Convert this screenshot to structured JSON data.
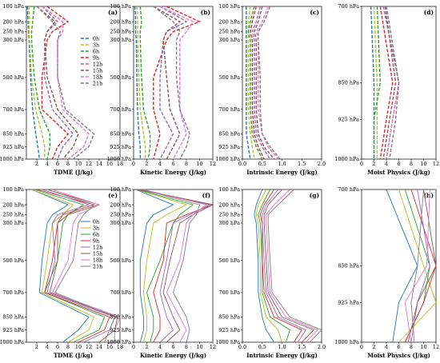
{
  "colors": {
    "0h": "#1f77b4",
    "3h": "#bcbd22",
    "6h": "#2ca02c",
    "9h": "#d62728",
    "12h": "#9467bd",
    "15h": "#8c564b",
    "18h": "#e377c2",
    "21h": "#7f7f7f"
  },
  "chart_data": [
    {
      "panel": "(a)",
      "type": "line",
      "style": "dashed",
      "xlabel": "TDME (J/kg)",
      "xlim": [
        0,
        18
      ],
      "xticks": [
        2,
        4,
        6,
        8,
        10,
        12,
        14,
        16,
        18
      ],
      "levels_y": [
        "100 hPa",
        "200 hPa",
        "250 hPa",
        "300 hPa",
        "500 hPa",
        "700 hPa",
        "850 hPa",
        "925 hPa",
        "1000 hPa"
      ],
      "legend": [
        "0h",
        "3h",
        "6h",
        "9h",
        "12h",
        "15h",
        "18h",
        "21h"
      ],
      "series": [
        {
          "name": "0h",
          "values": [
            0.2,
            0.3,
            0.4,
            0.5,
            0.8,
            1.2,
            1.8,
            2.2,
            2.5
          ]
        },
        {
          "name": "3h",
          "values": [
            0.5,
            0.6,
            0.5,
            0.6,
            1.0,
            1.8,
            3.0,
            3.5,
            3.5
          ]
        },
        {
          "name": "6h",
          "values": [
            1.5,
            1.2,
            1.0,
            1.0,
            1.5,
            2.5,
            4.5,
            4.5,
            4.0
          ]
        },
        {
          "name": "9h",
          "values": [
            4,
            8,
            5,
            4,
            3,
            3,
            8,
            6,
            5
          ]
        },
        {
          "name": "12h",
          "values": [
            3,
            6,
            4,
            3.5,
            3.5,
            5,
            9,
            7,
            6
          ]
        },
        {
          "name": "15h",
          "values": [
            2,
            5.5,
            4,
            3.5,
            4,
            6,
            10,
            9,
            7
          ]
        },
        {
          "name": "18h",
          "values": [
            3,
            7,
            7,
            6,
            6,
            7,
            12,
            11,
            8
          ]
        },
        {
          "name": "21h",
          "values": [
            2,
            5,
            6.5,
            6,
            6,
            7.5,
            13,
            12,
            9
          ]
        }
      ]
    },
    {
      "panel": "(b)",
      "type": "line",
      "style": "dashed",
      "xlabel": "Kinetic Energy (J/kg)",
      "xlim": [
        0,
        12
      ],
      "xticks": [
        0,
        2,
        4,
        6,
        8,
        10,
        12
      ],
      "levels_y": [
        "100 hPa",
        "200 hPa",
        "250 hPa",
        "300 hPa",
        "500 hPa",
        "700 hPa",
        "850 hPa",
        "925 hPa",
        "1000 hPa"
      ],
      "series": [
        {
          "name": "0h",
          "values": [
            0.2,
            0.3,
            0.3,
            0.4,
            0.5,
            0.6,
            0.8,
            1.0,
            1.0
          ]
        },
        {
          "name": "3h",
          "values": [
            0.5,
            0.6,
            0.6,
            0.6,
            0.8,
            1.0,
            1.5,
            1.8,
            1.8
          ]
        },
        {
          "name": "6h",
          "values": [
            1.0,
            1.2,
            1.0,
            1.0,
            1.2,
            1.5,
            2.5,
            2.5,
            2.2
          ]
        },
        {
          "name": "9h",
          "values": [
            5,
            10,
            6,
            5,
            3,
            3,
            4,
            3.5,
            3
          ]
        },
        {
          "name": "12h",
          "values": [
            4,
            8,
            5,
            4.5,
            4,
            4,
            6,
            5,
            4
          ]
        },
        {
          "name": "15h",
          "values": [
            3,
            7,
            5,
            4.5,
            5,
            5.5,
            7,
            6,
            5
          ]
        },
        {
          "name": "18h",
          "values": [
            4,
            9,
            8,
            7,
            7,
            7,
            8,
            7,
            6
          ]
        },
        {
          "name": "21h",
          "values": [
            3,
            6,
            7,
            6.5,
            6.5,
            7,
            8.5,
            8,
            7
          ]
        }
      ]
    },
    {
      "panel": "(c)",
      "type": "line",
      "style": "dashed",
      "xlabel": "Intrinsic Energy (J/kg)",
      "xlim": [
        0,
        2.0
      ],
      "xticks": [
        0.0,
        0.5,
        1.0,
        1.5,
        2.0
      ],
      "levels_y": [
        "100 hPa",
        "200 hPa",
        "250 hPa",
        "300 hPa",
        "500 hPa",
        "700 hPa",
        "850 hPa",
        "925 hPa",
        "1000 hPa"
      ],
      "series": [
        {
          "name": "0h",
          "values": [
            0.1,
            0.1,
            0.1,
            0.1,
            0.1,
            0.1,
            0.1,
            0.15,
            0.2
          ]
        },
        {
          "name": "3h",
          "values": [
            0.2,
            0.15,
            0.15,
            0.15,
            0.15,
            0.15,
            0.2,
            0.25,
            0.3
          ]
        },
        {
          "name": "6h",
          "values": [
            0.3,
            0.2,
            0.15,
            0.2,
            0.2,
            0.2,
            0.25,
            0.35,
            0.5
          ]
        },
        {
          "name": "9h",
          "values": [
            0.35,
            0.25,
            0.2,
            0.25,
            0.25,
            0.25,
            0.3,
            0.4,
            0.55
          ]
        },
        {
          "name": "12h",
          "values": [
            0.45,
            0.35,
            0.25,
            0.3,
            0.3,
            0.3,
            0.35,
            0.5,
            0.7
          ]
        },
        {
          "name": "15h",
          "values": [
            0.5,
            0.4,
            0.3,
            0.35,
            0.35,
            0.35,
            0.4,
            0.55,
            0.8
          ]
        },
        {
          "name": "18h",
          "values": [
            0.65,
            0.5,
            0.35,
            0.4,
            0.4,
            0.4,
            0.5,
            0.65,
            0.9
          ]
        },
        {
          "name": "21h",
          "values": [
            0.7,
            0.55,
            0.4,
            0.4,
            0.45,
            0.45,
            0.5,
            0.7,
            0.95
          ]
        }
      ]
    },
    {
      "panel": "(d)",
      "type": "line",
      "style": "dashed",
      "xlabel": "Moist Physics (J/kg)",
      "xlim": [
        0,
        12
      ],
      "xticks": [
        0,
        2,
        4,
        6,
        8,
        10,
        12
      ],
      "levels_y": [
        "700 hPa",
        "850 hPa",
        "925 hPa",
        "1000 hPa"
      ],
      "series": [
        {
          "name": "0h",
          "values": [
            1.5,
            2,
            2,
            2
          ]
        },
        {
          "name": "3h",
          "values": [
            2,
            2.5,
            2.5,
            2.5
          ]
        },
        {
          "name": "6h",
          "values": [
            2.5,
            3,
            2,
            2
          ]
        },
        {
          "name": "9h",
          "values": [
            3,
            5,
            4,
            3
          ]
        },
        {
          "name": "12h",
          "values": [
            3.5,
            6,
            5,
            4
          ]
        },
        {
          "name": "15h",
          "values": [
            3.8,
            5.5,
            4.5,
            3.5
          ]
        },
        {
          "name": "18h",
          "values": [
            4,
            6,
            5,
            4
          ]
        },
        {
          "name": "21h",
          "values": [
            4,
            6,
            5.5,
            4.5
          ]
        }
      ]
    },
    {
      "panel": "(e)",
      "type": "line",
      "style": "solid",
      "xlabel": "TDME (J/kg)",
      "xlim": [
        0,
        18
      ],
      "xticks": [
        2,
        4,
        6,
        8,
        10,
        12,
        14,
        16,
        18
      ],
      "levels_y": [
        "100 hPa",
        "200 hPa",
        "250 hPa",
        "300 hPa",
        "500 hPa",
        "700 hPa",
        "850 hPa",
        "925 hPa",
        "1000 hPa"
      ],
      "legend": [
        "0h",
        "3h",
        "6h",
        "9h",
        "12h",
        "15h",
        "18h",
        "21h"
      ],
      "series": [
        {
          "name": "0h",
          "values": [
            1,
            8,
            5,
            4,
            3,
            2.5,
            12,
            10,
            7
          ]
        },
        {
          "name": "3h",
          "values": [
            1,
            9,
            7,
            5,
            4,
            3,
            13,
            12,
            8
          ]
        },
        {
          "name": "6h",
          "values": [
            1.5,
            11,
            8,
            7,
            6,
            3.5,
            15,
            14,
            9
          ]
        },
        {
          "name": "9h",
          "values": [
            2,
            13,
            7,
            6,
            5,
            3.5,
            16,
            15,
            10
          ]
        },
        {
          "name": "12h",
          "values": [
            3,
            12,
            6,
            5,
            5.5,
            4,
            17,
            16,
            11
          ]
        },
        {
          "name": "15h",
          "values": [
            4,
            14,
            8,
            6,
            6,
            4.5,
            17.5,
            17,
            14
          ]
        },
        {
          "name": "18h",
          "values": [
            5,
            14,
            10,
            9,
            8,
            5,
            18,
            17,
            17
          ]
        },
        {
          "name": "21h",
          "values": [
            4,
            13,
            11,
            10,
            9,
            5.5,
            17,
            16,
            15
          ]
        }
      ]
    },
    {
      "panel": "(f)",
      "type": "line",
      "style": "solid",
      "xlabel": "Kinetic Energy (J/kg)",
      "xlim": [
        0,
        12
      ],
      "xticks": [
        0,
        2,
        4,
        6,
        8,
        10,
        12
      ],
      "levels_y": [
        "100 hPa",
        "200 hPa",
        "250 hPa",
        "300 hPa",
        "500 hPa",
        "700 hPa",
        "850 hPa",
        "925 hPa",
        "1000 hPa"
      ],
      "series": [
        {
          "name": "0h",
          "values": [
            0.3,
            6,
            3,
            2,
            1,
            1,
            1.5,
            1.5,
            1
          ]
        },
        {
          "name": "3h",
          "values": [
            0.4,
            8,
            5,
            3,
            2,
            1.5,
            2,
            2,
            1.5
          ]
        },
        {
          "name": "6h",
          "values": [
            0.5,
            9,
            7,
            6,
            4,
            2,
            3,
            3,
            2.5
          ]
        },
        {
          "name": "9h",
          "values": [
            0.6,
            12,
            8,
            5,
            4.5,
            3,
            4,
            4,
            3
          ]
        },
        {
          "name": "12h",
          "values": [
            0.8,
            11.5,
            8.5,
            6,
            5,
            4,
            5,
            6,
            4
          ]
        },
        {
          "name": "15h",
          "values": [
            1,
            12,
            9,
            7,
            5.5,
            4.5,
            6,
            7,
            5
          ]
        },
        {
          "name": "18h",
          "values": [
            1.5,
            11,
            9,
            8,
            7,
            5,
            7,
            8,
            7
          ]
        },
        {
          "name": "21h",
          "values": [
            1.2,
            10,
            9.5,
            8.5,
            7.5,
            6,
            8,
            8.5,
            8
          ]
        }
      ]
    },
    {
      "panel": "(g)",
      "type": "line",
      "style": "solid",
      "xlabel": "Intrinsic Energy (J/kg)",
      "xlim": [
        0,
        2.0
      ],
      "xticks": [
        0.0,
        0.5,
        1.0,
        1.5,
        2.0
      ],
      "levels_y": [
        "100 hPa",
        "200 hPa",
        "250 hPa",
        "300 hPa",
        "500 hPa",
        "700 hPa",
        "850 hPa",
        "925 hPa",
        "1000 hPa"
      ],
      "series": [
        {
          "name": "0h",
          "values": [
            0.5,
            0.35,
            0.3,
            0.35,
            0.4,
            0.4,
            0.5,
            0.6,
            0.8
          ]
        },
        {
          "name": "3h",
          "values": [
            0.6,
            0.4,
            0.35,
            0.4,
            0.45,
            0.45,
            0.6,
            0.9,
            1.0
          ]
        },
        {
          "name": "6h",
          "values": [
            0.7,
            0.5,
            0.4,
            0.45,
            0.5,
            0.5,
            0.7,
            1.2,
            1.1
          ]
        },
        {
          "name": "9h",
          "values": [
            0.8,
            0.55,
            0.45,
            0.5,
            0.5,
            0.55,
            0.8,
            1.5,
            1.3
          ]
        },
        {
          "name": "12h",
          "values": [
            0.9,
            0.6,
            0.5,
            0.5,
            0.55,
            0.6,
            0.9,
            1.6,
            1.4
          ]
        },
        {
          "name": "15h",
          "values": [
            1.0,
            0.65,
            0.55,
            0.55,
            0.6,
            0.65,
            1.0,
            1.8,
            1.5
          ]
        },
        {
          "name": "18h",
          "values": [
            1.2,
            0.8,
            0.6,
            0.6,
            0.65,
            0.7,
            1.1,
            1.9,
            1.6
          ]
        },
        {
          "name": "21h",
          "values": [
            1.3,
            0.9,
            0.65,
            0.65,
            0.7,
            0.75,
            1.2,
            2.0,
            1.7
          ]
        }
      ]
    },
    {
      "panel": "(h)",
      "type": "line",
      "style": "solid",
      "xlabel": "Moist Physics (J/kg)",
      "xlim": [
        0,
        12
      ],
      "xticks": [
        0,
        2,
        4,
        6,
        8,
        10,
        12
      ],
      "levels_y": [
        "700 hPa",
        "850 hPa",
        "925 hPa",
        "1000 hPa"
      ],
      "series": [
        {
          "name": "0h",
          "values": [
            4,
            9,
            6,
            5
          ]
        },
        {
          "name": "3h",
          "values": [
            6,
            10,
            12,
            6
          ]
        },
        {
          "name": "6h",
          "values": [
            7,
            11,
            10,
            7
          ]
        },
        {
          "name": "9h",
          "values": [
            8,
            12,
            10,
            7
          ]
        },
        {
          "name": "12h",
          "values": [
            9,
            11,
            9,
            8
          ]
        },
        {
          "name": "15h",
          "values": [
            10,
            12,
            9,
            7.5
          ]
        },
        {
          "name": "18h",
          "values": [
            11,
            10.5,
            7,
            8
          ]
        },
        {
          "name": "21h",
          "values": [
            10,
            9,
            8,
            8.5
          ]
        }
      ]
    }
  ]
}
